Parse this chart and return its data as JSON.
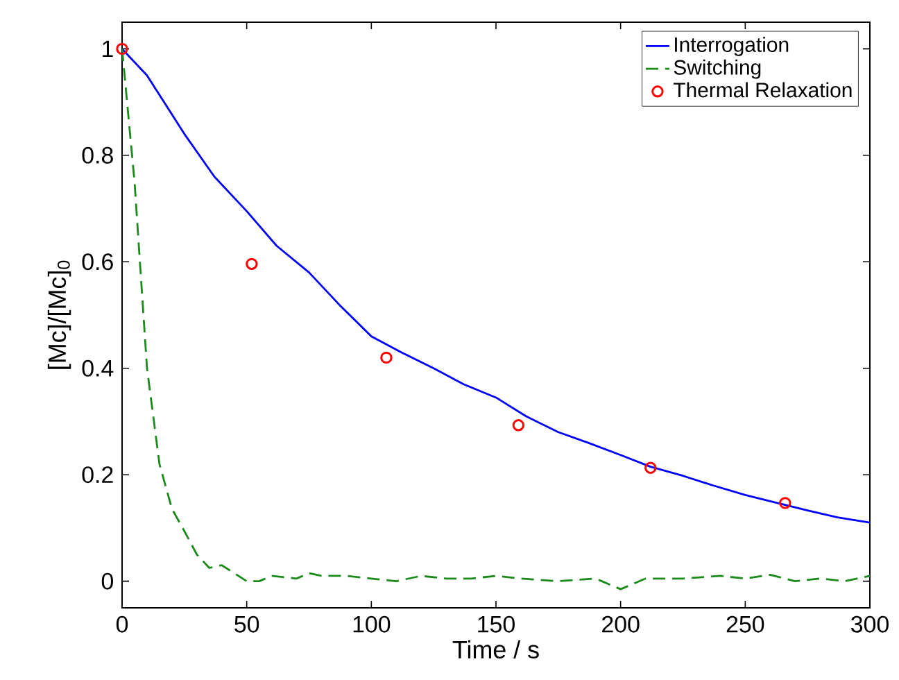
{
  "chart_data": {
    "type": "line",
    "xlabel": "Time / s",
    "ylabel": "[Mc]/[Mc]$_{0}$",
    "xlim": [
      0,
      300
    ],
    "ylim": [
      -0.05,
      1.05
    ],
    "xticks": [
      0,
      50,
      100,
      150,
      200,
      250,
      300
    ],
    "yticks": [
      0,
      {
        "value": 0.2,
        "label": "0.2"
      },
      {
        "value": 0.4,
        "label": "0.4"
      },
      {
        "value": 0.6,
        "label": "0.6"
      },
      {
        "value": 0.8,
        "label": "0.8"
      },
      1
    ],
    "legend": "top right",
    "series": [
      {
        "name": "Interrogation",
        "color": "#0000ff",
        "line_style": "solid",
        "marker": "none",
        "x": [
          0,
          10,
          25,
          37,
          50,
          62,
          75,
          87,
          100,
          112,
          125,
          137,
          150,
          162,
          175,
          187,
          200,
          212,
          225,
          237,
          250,
          262,
          275,
          287,
          300
        ],
        "values": [
          1.0,
          0.95,
          0.84,
          0.76,
          0.695,
          0.63,
          0.58,
          0.52,
          0.46,
          0.43,
          0.4,
          0.37,
          0.345,
          0.31,
          0.28,
          0.26,
          0.237,
          0.215,
          0.198,
          0.18,
          0.162,
          0.148,
          0.133,
          0.12,
          0.11
        ]
      },
      {
        "name": "Switching",
        "color": "#1a8a1a",
        "line_style": "dashed",
        "marker": "none",
        "x": [
          0,
          5,
          10,
          15,
          20,
          25,
          30,
          35,
          40,
          45,
          50,
          55,
          60,
          70,
          75,
          80,
          90,
          100,
          110,
          120,
          130,
          140,
          150,
          160,
          175,
          190,
          200,
          210,
          225,
          240,
          250,
          260,
          270,
          280,
          290,
          300
        ],
        "values": [
          1.0,
          0.75,
          0.4,
          0.22,
          0.136,
          0.094,
          0.05,
          0.025,
          0.03,
          0.015,
          0.0,
          0.0,
          0.01,
          0.005,
          0.015,
          0.01,
          0.01,
          0.005,
          0.0,
          0.01,
          0.005,
          0.005,
          0.01,
          0.005,
          0.0,
          0.005,
          -0.015,
          0.005,
          0.005,
          0.01,
          0.005,
          0.012,
          0.0,
          0.005,
          0.0,
          0.01
        ]
      },
      {
        "name": "Thermal Relaxation",
        "type": "scatter",
        "color": "#ff0000",
        "marker": "circle",
        "x": [
          0,
          52,
          106,
          159,
          212,
          266
        ],
        "values": [
          1.0,
          0.596,
          0.42,
          0.293,
          0.213,
          0.147
        ]
      }
    ]
  }
}
